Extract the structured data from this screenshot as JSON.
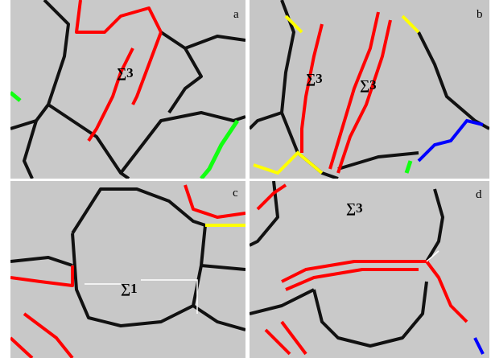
{
  "panels": [
    {
      "label": "a",
      "annotations": [
        "∑3"
      ]
    },
    {
      "label": "b",
      "annotations": [
        "∑3",
        "∑3"
      ]
    },
    {
      "label": "c",
      "annotations": [
        "∑1"
      ]
    },
    {
      "label": "d",
      "annotations": [
        "∑3"
      ]
    }
  ]
}
